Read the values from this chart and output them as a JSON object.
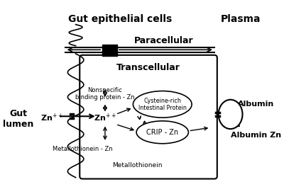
{
  "title": "Gut epithelial cells",
  "plasma_label": "Plasma",
  "gut_lumen_label": "Gut\nlumen",
  "paracellular_label": "Paracellular",
  "transcellular_label": "Transcellular",
  "albumin_label": "Albumin",
  "albumin_zn_label": "Albumin Zn",
  "zn_plus_left": "Zn",
  "zn_plus_right": "Zn",
  "nonspecific_label": "Nonspecific\nbinding protein - Zn",
  "cysteine_label": "Cysteine-rich\nIntestinal Protein",
  "crip_label": "CRIP - Zn",
  "metallothionein_zn_label": "Metallothionein - Zn",
  "metallothionein_label": "Metallothionein",
  "bg_color": "#ffffff"
}
